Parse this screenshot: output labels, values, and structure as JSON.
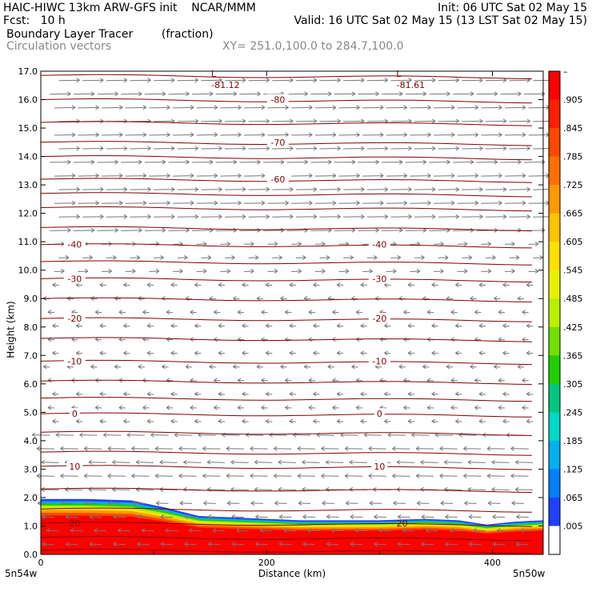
{
  "header": {
    "title_left": "HAIC-HIWC 13km ARW-GFS init    NCAR/MMM",
    "init": "Init: 06 UTC Sat 02 May 15",
    "fcst": "Fcst:   10 h",
    "valid": "Valid: 16 UTC Sat 02 May 15 (13 LST Sat 02 May 15)",
    "field": "Boundary Layer Tracer        (fraction)",
    "vectors": "Circulation vectors",
    "xsec": "XY= 251.0,100.0 to 284.7,100.0"
  },
  "chart_data": {
    "type": "heatmap",
    "xlabel": "Distance (km)",
    "ylabel": "Height (km)",
    "xlim": [
      0,
      445
    ],
    "ylim": [
      0,
      17
    ],
    "x_ticks": [
      "0",
      "200",
      "400"
    ],
    "y_ticks": [
      "0.0",
      "1.0",
      "2.0",
      "3.0",
      "4.0",
      "5.0",
      "6.0",
      "7.0",
      "8.0",
      "9.0",
      "10.0",
      "11.0",
      "12.0",
      "13.0",
      "14.0",
      "15.0",
      "16.0",
      "17.0"
    ],
    "x_endpoints": {
      "left": "5n54w",
      "right": "5n50w"
    },
    "grid": false,
    "tracer": {
      "name": "Boundary Layer Tracer",
      "units": "fraction",
      "colorbar_labels": [
        "–",
        ".905",
        ".845",
        ".785",
        ".725",
        ".665",
        ".605",
        ".545",
        ".485",
        ".425",
        ".365",
        ".305",
        ".245",
        ".185",
        ".125",
        ".065",
        ".005"
      ],
      "colorbar_colors": [
        "#ff0000",
        "#ff2000",
        "#ff4800",
        "#ff7000",
        "#ff9800",
        "#ffc000",
        "#ffe000",
        "#e8f000",
        "#b8f000",
        "#70e000",
        "#20d000",
        "#00c880",
        "#00d8c8",
        "#00b0f0",
        "#0080ff",
        "#2040ff",
        "#ffffff"
      ],
      "top_height_km": [
        [
          0,
          1.95
        ],
        [
          40,
          1.95
        ],
        [
          80,
          1.9
        ],
        [
          110,
          1.65
        ],
        [
          140,
          1.35
        ],
        [
          170,
          1.3
        ],
        [
          200,
          1.25
        ],
        [
          230,
          1.2
        ],
        [
          260,
          1.2
        ],
        [
          300,
          1.2
        ],
        [
          340,
          1.25
        ],
        [
          370,
          1.2
        ],
        [
          395,
          1.05
        ],
        [
          420,
          1.15
        ],
        [
          445,
          1.2
        ]
      ]
    },
    "temperature_contours": {
      "units": "C",
      "levels": [
        {
          "label": "-80",
          "h": 16.0
        },
        {
          "label": "-70",
          "h": 14.5
        },
        {
          "label": "-60",
          "h": 13.2
        },
        {
          "label": "-40",
          "h": 10.9
        },
        {
          "label": "-30",
          "h": 9.7
        },
        {
          "label": "-20",
          "h": 8.3
        },
        {
          "label": "-10",
          "h": 6.8
        },
        {
          "label": "0",
          "h": 4.95
        },
        {
          "label": "10",
          "h": 3.1
        },
        {
          "label": "20",
          "h": 1.1
        }
      ],
      "extra_lines_km": [
        16.85,
        15.2,
        14.0,
        12.7,
        12.2,
        11.5,
        10.3,
        9.0,
        7.6,
        6.1,
        5.5,
        4.3,
        3.6,
        2.3,
        1.6,
        0.6,
        0.15
      ],
      "minima": [
        {
          "label": "L",
          "value": "-81.12",
          "x": 148
        },
        {
          "label": "L",
          "value": "-81.61",
          "x": 312
        }
      ]
    },
    "circulation_vectors": {
      "layers": [
        {
          "h_min": 11.0,
          "h_max": 17.0,
          "u": 1.0,
          "length_px": 22
        },
        {
          "h_min": 9.5,
          "h_max": 11.0,
          "u": 0.6,
          "length_px": 14
        },
        {
          "h_min": 4.5,
          "h_max": 9.5,
          "u": -0.4,
          "length_px": 10
        },
        {
          "h_min": 2.0,
          "h_max": 4.5,
          "u": -1.0,
          "length_px": 18
        },
        {
          "h_min": 0.1,
          "h_max": 2.0,
          "u": -0.8,
          "length_px": 14
        }
      ]
    }
  }
}
